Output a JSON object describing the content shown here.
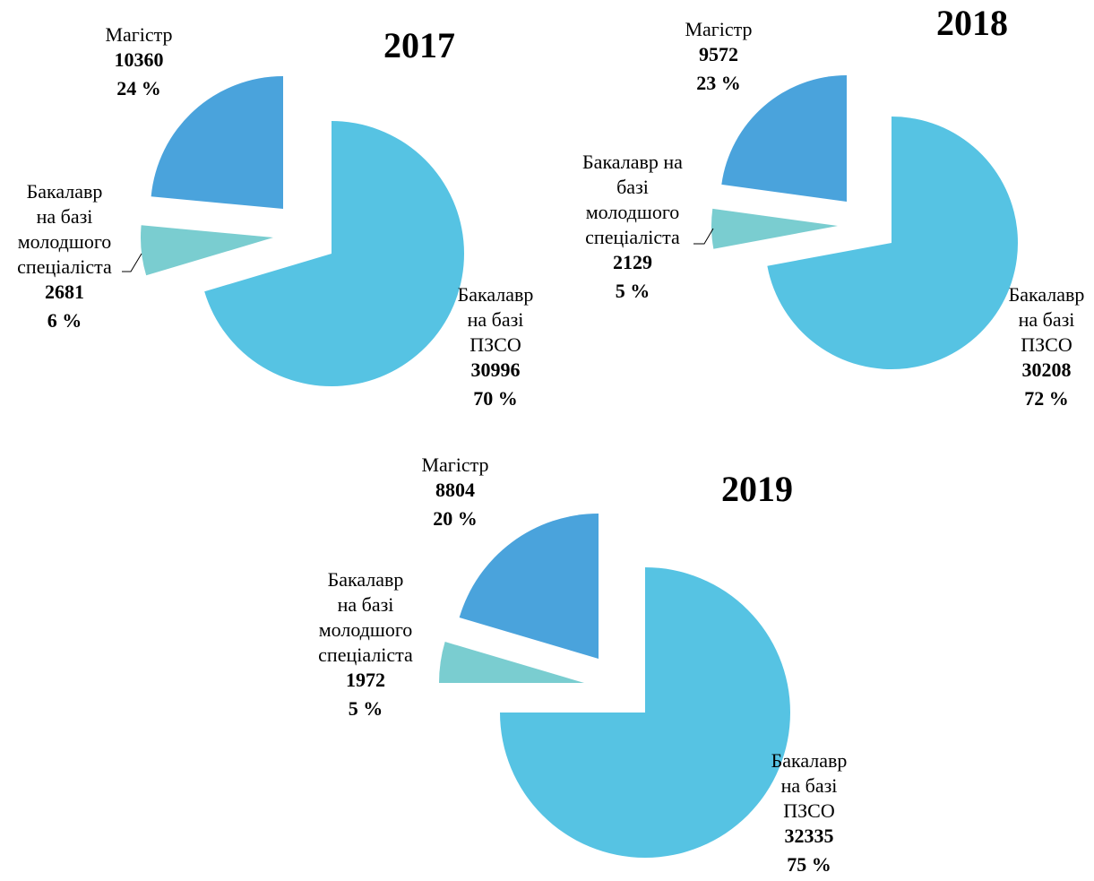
{
  "chart_data": [
    {
      "type": "pie",
      "title": "2017",
      "categories": [
        "Бакалавр\nна базі\nПЗСО",
        "Бакалавр\nна базі\nмолодшого\nспеціаліста",
        "Магістр"
      ],
      "values": [
        30996,
        2681,
        10360
      ],
      "percent_labels": [
        "70 %",
        "6 %",
        "24 %"
      ],
      "colors": [
        "#56c3e3",
        "#7acdd0",
        "#4aa3dc"
      ]
    },
    {
      "type": "pie",
      "title": "2018",
      "categories": [
        "Бакалавр\nна базі\nПЗСО",
        "Бакалавр на\nбазі\nмолодшого\nспеціаліста",
        "Магістр"
      ],
      "values": [
        30208,
        2129,
        9572
      ],
      "percent_labels": [
        "72 %",
        "5 %",
        "23 %"
      ],
      "colors": [
        "#56c3e3",
        "#7acdd0",
        "#4aa3dc"
      ]
    },
    {
      "type": "pie",
      "title": "2019",
      "categories": [
        "Бакалавр\nна базі\nПЗСО",
        "Бакалавр\nна базі\nмолодшого\nспеціаліста",
        "Магістр"
      ],
      "values": [
        32335,
        1972,
        8804
      ],
      "percent_labels": [
        "75 %",
        "5 %",
        "20 %"
      ],
      "colors": [
        "#56c3e3",
        "#7acdd0",
        "#4aa3dc"
      ]
    }
  ]
}
